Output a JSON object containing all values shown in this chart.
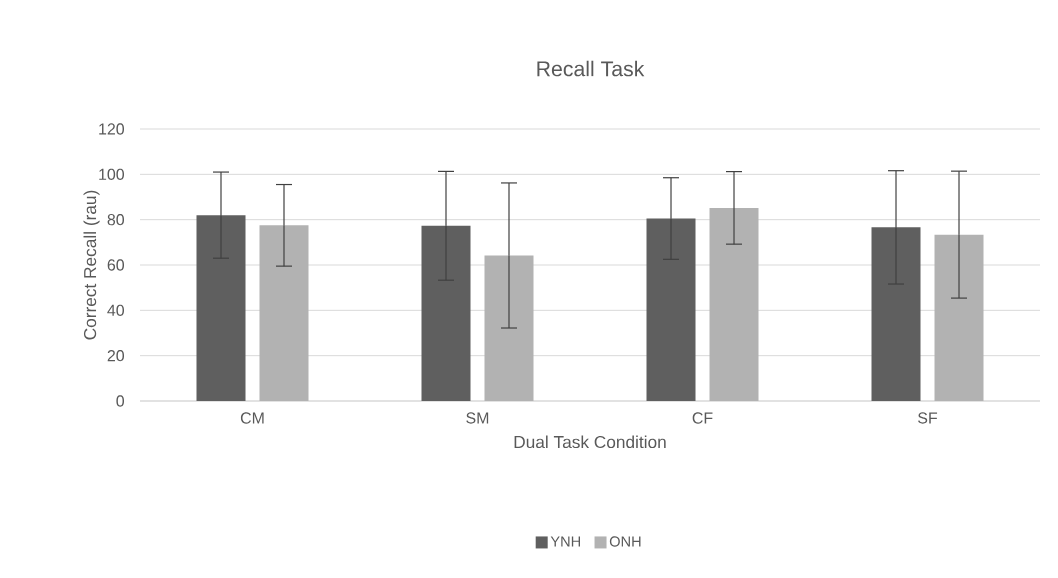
{
  "chart_data": {
    "type": "bar",
    "title": "Recall Task",
    "xlabel": "Dual Task Condition",
    "ylabel": "Correct Recall (rau)",
    "categories": [
      "CM",
      "SM",
      "CF",
      "SF"
    ],
    "series": [
      {
        "name": "YNH",
        "color": "#5f5f5f",
        "values": [
          82,
          77.3,
          80.5,
          76.6
        ],
        "errors": [
          19,
          24,
          18,
          25
        ]
      },
      {
        "name": "ONH",
        "color": "#b2b2b2",
        "values": [
          77.5,
          64.2,
          85.2,
          73.4
        ],
        "errors": [
          18,
          32,
          16,
          28
        ]
      }
    ],
    "ylim": [
      0,
      120
    ],
    "yticks": [
      0,
      20,
      40,
      60,
      80,
      100,
      120
    ],
    "grid": "y",
    "legend": "bottom"
  }
}
